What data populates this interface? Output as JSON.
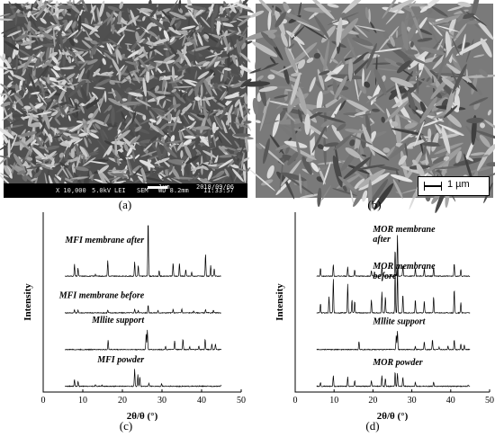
{
  "panel_labels": {
    "a": "(a)",
    "b": "(b)",
    "c": "(c)",
    "d": "(d)"
  },
  "sem_a": {
    "magnification": "X 10,000",
    "voltage": "5.0kV",
    "detector": "LEI",
    "mode": "SEM",
    "scale": "1µm",
    "wd": "WD 8.2mm",
    "date": "2018/09/06",
    "time": "11:33:57"
  },
  "sem_b": {
    "scale": "1 µm"
  },
  "chart_data": [
    {
      "type": "line",
      "panel": "c",
      "xlabel": "2θ/θ (°)",
      "ylabel": "Intensity",
      "xlim": [
        0,
        50
      ],
      "xticks": [
        0,
        10,
        20,
        30,
        40,
        50
      ],
      "series": [
        {
          "name": "MFI membrane after",
          "offset": 3,
          "peaks": [
            [
              7.9,
              0.45
            ],
            [
              8.8,
              0.3
            ],
            [
              13.2,
              0.08
            ],
            [
              16.3,
              0.6
            ],
            [
              23.1,
              0.55
            ],
            [
              24.0,
              0.4
            ],
            [
              26.5,
              2.15
            ],
            [
              29.3,
              0.2
            ],
            [
              32.8,
              0.5
            ],
            [
              34.4,
              0.5
            ],
            [
              36.0,
              0.25
            ],
            [
              37.5,
              0.15
            ],
            [
              41.0,
              0.85
            ],
            [
              42.3,
              0.4
            ],
            [
              43.2,
              0.3
            ]
          ]
        },
        {
          "name": "MFI membrane before",
          "offset": 2,
          "peaks": [
            [
              7.9,
              0.12
            ],
            [
              8.8,
              0.1
            ],
            [
              16.3,
              0.1
            ],
            [
              23.1,
              0.15
            ],
            [
              24.0,
              0.1
            ],
            [
              26.5,
              0.3
            ],
            [
              29.0,
              0.08
            ],
            [
              32.8,
              0.12
            ],
            [
              35.0,
              0.15
            ],
            [
              38.0,
              0.08
            ],
            [
              41.0,
              0.12
            ],
            [
              43.0,
              0.1
            ]
          ]
        },
        {
          "name": "Mllite support",
          "offset": 1,
          "peaks": [
            [
              16.4,
              0.35
            ],
            [
              26.0,
              0.6
            ],
            [
              26.3,
              0.75
            ],
            [
              30.9,
              0.12
            ],
            [
              33.2,
              0.35
            ],
            [
              35.3,
              0.4
            ],
            [
              37.0,
              0.1
            ],
            [
              39.3,
              0.15
            ],
            [
              40.9,
              0.4
            ],
            [
              42.6,
              0.22
            ],
            [
              43.5,
              0.2
            ]
          ]
        },
        {
          "name": "MFI powder",
          "offset": 0,
          "peaks": [
            [
              7.9,
              0.25
            ],
            [
              8.8,
              0.18
            ],
            [
              13.2,
              0.06
            ],
            [
              14.8,
              0.05
            ],
            [
              23.1,
              0.65
            ],
            [
              23.9,
              0.45
            ],
            [
              24.4,
              0.35
            ],
            [
              26.7,
              0.12
            ],
            [
              29.9,
              0.1
            ],
            [
              45.0,
              0.05
            ]
          ]
        }
      ]
    },
    {
      "type": "line",
      "panel": "d",
      "xlabel": "2θ/θ (°)",
      "ylabel": "Intensity",
      "xlim": [
        0,
        50
      ],
      "xticks": [
        0,
        10,
        20,
        30,
        40,
        50
      ],
      "series": [
        {
          "name": "MOR membrane after",
          "offset": 3,
          "peaks": [
            [
              6.5,
              0.3
            ],
            [
              9.8,
              0.45
            ],
            [
              13.5,
              0.35
            ],
            [
              15.3,
              0.25
            ],
            [
              19.6,
              0.22
            ],
            [
              22.3,
              0.35
            ],
            [
              25.7,
              1.0
            ],
            [
              26.3,
              1.55
            ],
            [
              27.7,
              0.4
            ],
            [
              30.9,
              0.3
            ],
            [
              33.2,
              0.3
            ],
            [
              35.6,
              0.35
            ],
            [
              40.9,
              0.5
            ],
            [
              42.6,
              0.25
            ]
          ]
        },
        {
          "name": "MOR membrane before",
          "offset": 2,
          "peaks": [
            [
              6.5,
              0.35
            ],
            [
              8.7,
              0.6
            ],
            [
              9.8,
              1.3
            ],
            [
              13.5,
              1.1
            ],
            [
              14.6,
              0.5
            ],
            [
              15.3,
              0.45
            ],
            [
              19.6,
              0.5
            ],
            [
              22.3,
              0.8
            ],
            [
              23.2,
              0.6
            ],
            [
              25.7,
              1.6
            ],
            [
              26.3,
              1.7
            ],
            [
              27.7,
              0.7
            ],
            [
              30.9,
              0.5
            ],
            [
              33.2,
              0.45
            ],
            [
              35.6,
              0.6
            ],
            [
              40.9,
              0.9
            ],
            [
              42.6,
              0.4
            ]
          ]
        },
        {
          "name": "Mllite support",
          "offset": 1,
          "peaks": [
            [
              16.4,
              0.32
            ],
            [
              26.0,
              0.55
            ],
            [
              26.3,
              0.7
            ],
            [
              30.9,
              0.12
            ],
            [
              33.2,
              0.3
            ],
            [
              35.3,
              0.38
            ],
            [
              37.0,
              0.1
            ],
            [
              39.3,
              0.15
            ],
            [
              40.9,
              0.38
            ],
            [
              42.6,
              0.22
            ],
            [
              43.5,
              0.18
            ]
          ]
        },
        {
          "name": "MOR powder",
          "offset": 0,
          "peaks": [
            [
              6.5,
              0.15
            ],
            [
              9.8,
              0.4
            ],
            [
              13.5,
              0.35
            ],
            [
              15.3,
              0.22
            ],
            [
              19.6,
              0.22
            ],
            [
              22.3,
              0.4
            ],
            [
              23.2,
              0.3
            ],
            [
              25.7,
              0.55
            ],
            [
              26.3,
              0.5
            ],
            [
              27.7,
              0.35
            ],
            [
              30.9,
              0.15
            ],
            [
              35.6,
              0.15
            ],
            [
              44.5,
              0.05
            ]
          ]
        }
      ]
    }
  ]
}
